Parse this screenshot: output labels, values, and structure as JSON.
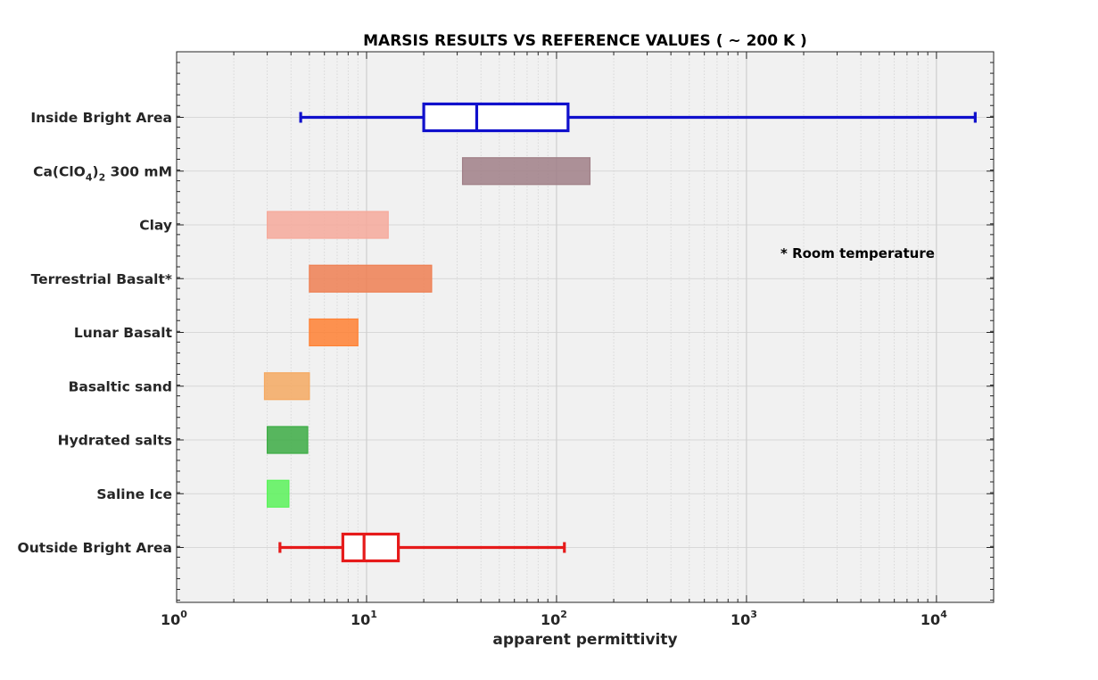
{
  "chart_data": {
    "type": "range-bar",
    "title": "MARSIS RESULTS VS REFERENCE VALUES ( ~ 200 K )",
    "xlabel": "apparent permittivity",
    "ylabel": "",
    "xscale": "log",
    "xlim": [
      1,
      20000
    ],
    "x_ticks": [
      {
        "value": 1,
        "base": "10",
        "exp": "0"
      },
      {
        "value": 10,
        "base": "10",
        "exp": "1"
      },
      {
        "value": 100,
        "base": "10",
        "exp": "2"
      },
      {
        "value": 1000,
        "base": "10",
        "exp": "3"
      },
      {
        "value": 10000,
        "base": "10",
        "exp": "4"
      }
    ],
    "grid": true,
    "annotation": "* Room temperature",
    "categories": [
      {
        "label": "Inside Bright Area",
        "kind": "boxplot",
        "whisker_low": 4.5,
        "q1": 20,
        "median": 38,
        "q3": 115,
        "whisker_high": 16000,
        "color": "#1010cc"
      },
      {
        "label": "Ca(ClO4)2 300 mM",
        "label_parts": {
          "a": "Ca(ClO",
          "sub1": "4",
          "b": ")",
          "sub2": "2",
          "c": " 300 mM"
        },
        "kind": "range",
        "min": 32,
        "max": 150,
        "color": "#a07f87"
      },
      {
        "label": "Clay",
        "kind": "range",
        "min": 3,
        "max": 13,
        "color": "#f6a99b"
      },
      {
        "label": "Terrestrial Basalt*",
        "kind": "range",
        "min": 5,
        "max": 22,
        "color": "#ee7f52"
      },
      {
        "label": "Lunar Basalt",
        "kind": "range",
        "min": 5,
        "max": 9,
        "color": "#ff8033"
      },
      {
        "label": "Basaltic sand",
        "kind": "range",
        "min": 2.9,
        "max": 5,
        "color": "#f5a962"
      },
      {
        "label": "Hydrated salts",
        "kind": "range",
        "min": 3,
        "max": 4.9,
        "color": "#3cac44"
      },
      {
        "label": "Saline Ice",
        "kind": "range",
        "min": 3,
        "max": 3.9,
        "color": "#5af25a"
      },
      {
        "label": "Outside Bright Area",
        "kind": "boxplot",
        "whisker_low": 3.5,
        "q1": 7.5,
        "median": 9.7,
        "q3": 14.7,
        "whisker_high": 110,
        "color": "#e61a1a"
      }
    ]
  }
}
